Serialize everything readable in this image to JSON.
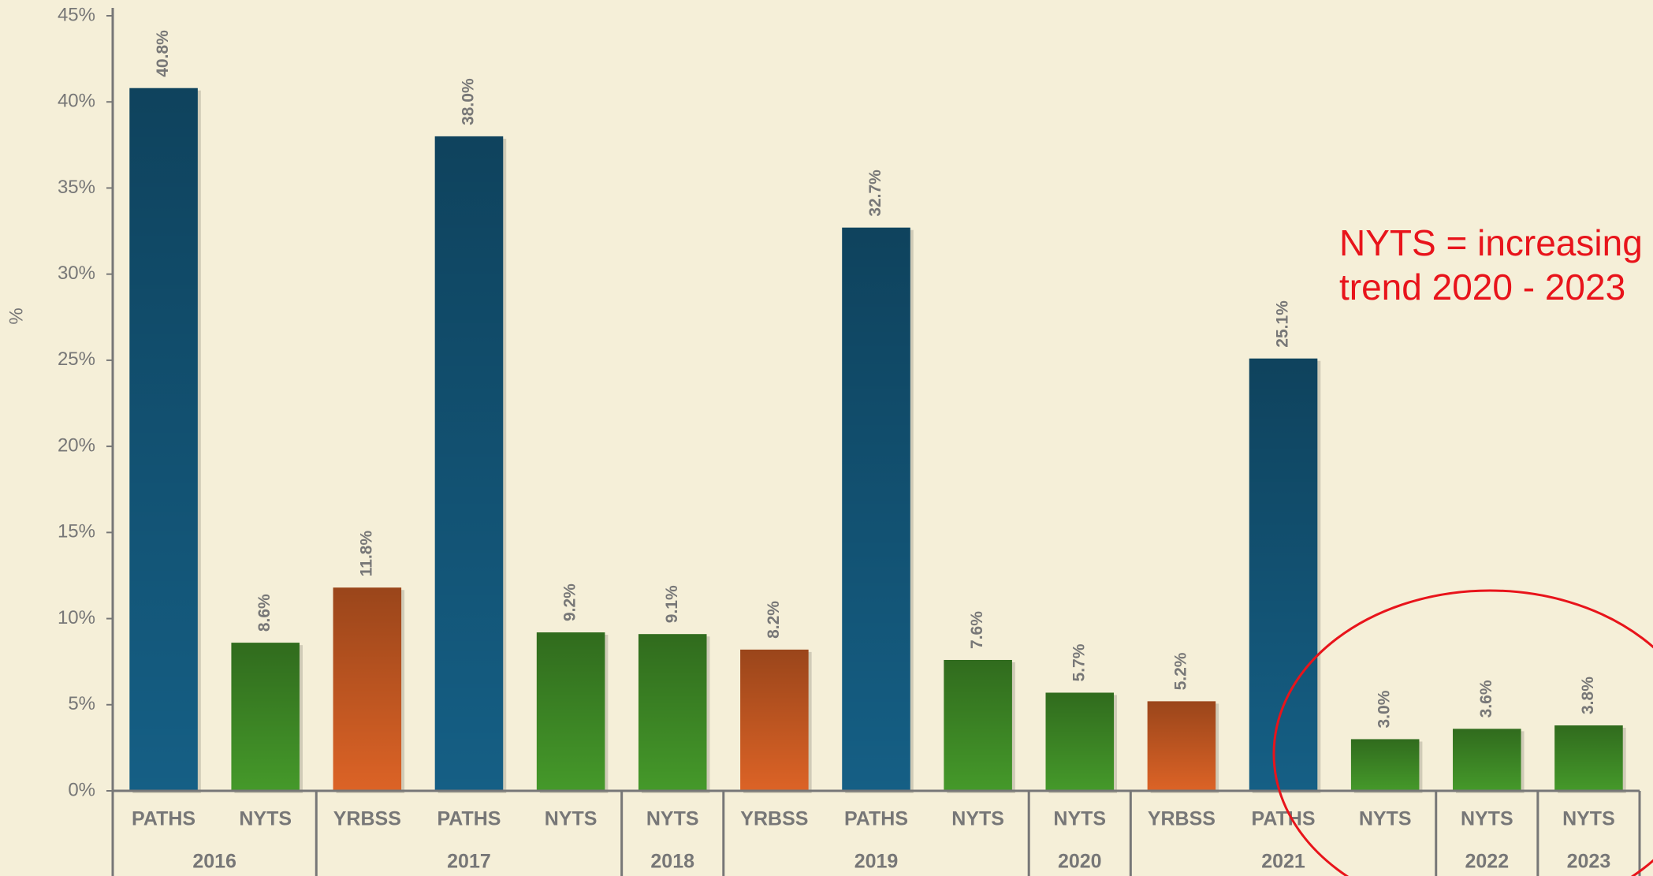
{
  "chart_data": {
    "type": "bar",
    "y_label": "%",
    "annotation": [
      "NYTS = increasing",
      "trend 2020 - 2023"
    ],
    "categories": [
      "PATHS",
      "NYTS",
      "YRBSS",
      "PATHS",
      "NYTS",
      "NYTS",
      "YRBSS",
      "PATHS",
      "NYTS",
      "NYTS",
      "YRBSS",
      "PATHS",
      "NYTS",
      "NYTS",
      "NYTS"
    ],
    "groups": [
      {
        "label": "2016",
        "span": 2
      },
      {
        "label": "2017",
        "span": 3
      },
      {
        "label": "2018",
        "span": 1
      },
      {
        "label": "2019",
        "span": 3
      },
      {
        "label": "2020",
        "span": 1
      },
      {
        "label": "2021",
        "span": 3
      },
      {
        "label": "2022",
        "span": 1
      },
      {
        "label": "2023",
        "span": 1
      }
    ],
    "values": [
      40.8,
      8.6,
      11.8,
      38.0,
      9.2,
      9.1,
      8.2,
      32.7,
      7.6,
      5.7,
      5.2,
      25.1,
      3.0,
      3.6,
      3.8
    ],
    "value_labels": [
      "40.8%",
      "8.6%",
      "11.8%",
      "38.0%",
      "9.2%",
      "9.1%",
      "8.2%",
      "32.7%",
      "7.6%",
      "5.7%",
      "5.2%",
      "25.1%",
      "3.0%",
      "3.6%",
      "3.8%"
    ],
    "colors": [
      "#155f85",
      "#45992a",
      "#dc6326",
      "#155f85",
      "#45992a",
      "#45992a",
      "#dc6326",
      "#155f85",
      "#45992a",
      "#45992a",
      "#dc6326",
      "#155f85",
      "#45992a",
      "#45992a",
      "#45992a"
    ],
    "ylim": [
      0,
      45
    ],
    "yticks": [
      {
        "value": 0,
        "label": "0%"
      },
      {
        "value": 5,
        "label": "5%"
      },
      {
        "value": 10,
        "label": "10%"
      },
      {
        "value": 15,
        "label": "15%"
      },
      {
        "value": 20,
        "label": "20%"
      },
      {
        "value": 25,
        "label": "25%"
      },
      {
        "value": 30,
        "label": "30%"
      },
      {
        "value": 35,
        "label": "35%"
      },
      {
        "value": 40,
        "label": "40%"
      },
      {
        "value": 45,
        "label": "45%"
      }
    ]
  }
}
